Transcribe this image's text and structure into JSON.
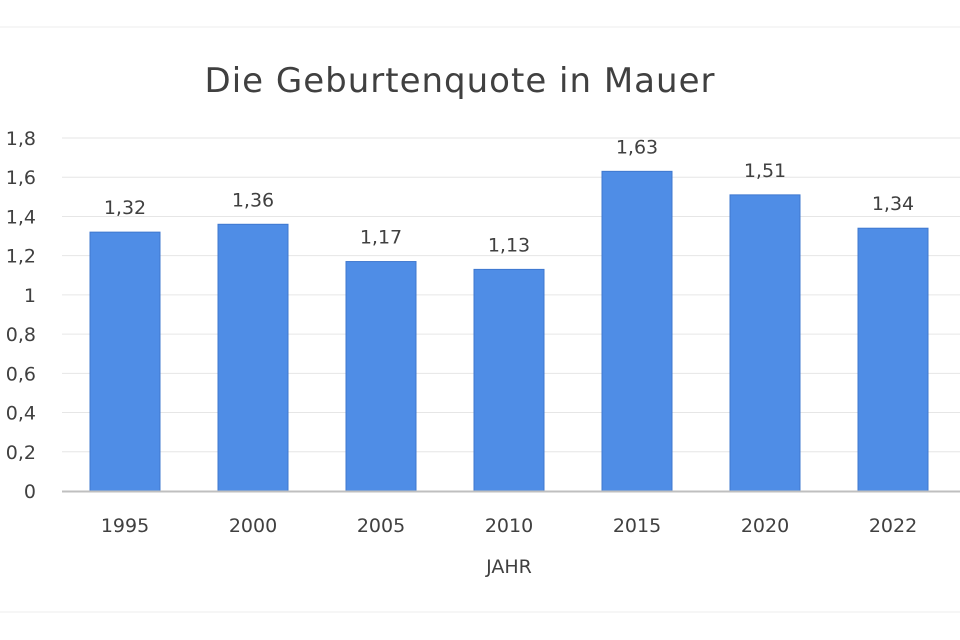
{
  "chart_data": {
    "type": "bar",
    "title": "Die Geburtenquote in Mauer",
    "xlabel": "JAHR",
    "ylabel": "",
    "categories": [
      "1995",
      "2000",
      "2005",
      "2010",
      "2015",
      "2020",
      "2022"
    ],
    "values": [
      1.32,
      1.36,
      1.17,
      1.13,
      1.63,
      1.51,
      1.34
    ],
    "value_labels": [
      "1,32",
      "1,36",
      "1,17",
      "1,13",
      "1,63",
      "1,51",
      "1,34"
    ],
    "ylim": [
      0,
      1.8
    ],
    "yticks": [
      0,
      0.2,
      0.4,
      0.6,
      0.8,
      1,
      1.2,
      1.4,
      1.6,
      1.8
    ],
    "ytick_labels": [
      "0",
      "0,2",
      "0,4",
      "0,6",
      "0,8",
      "1",
      "1,2",
      "1,4",
      "1,6",
      "1,8"
    ],
    "grid": true,
    "legend": "none",
    "colors": {
      "bar": "#4f8de6",
      "bar_edge": "#3f78cf",
      "grid": "#e6e6e6",
      "axis": "#bfbfbf",
      "text": "#404040"
    }
  }
}
